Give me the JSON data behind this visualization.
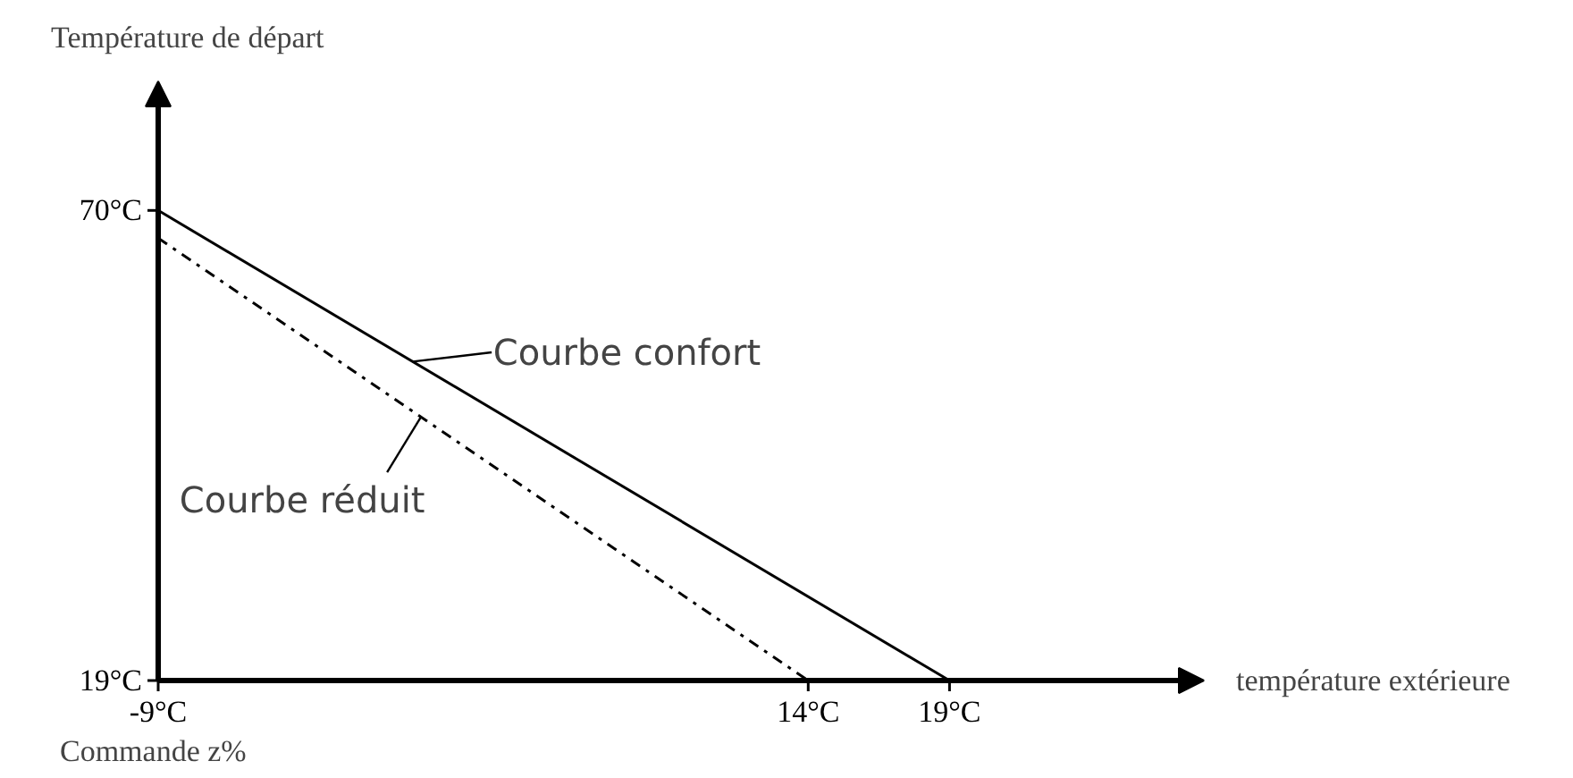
{
  "chart_data": {
    "type": "line",
    "xlabel": "température extérieure",
    "ylabel": "Température de départ",
    "xlim": [
      -9,
      28
    ],
    "ylim": [
      19,
      84
    ],
    "xticks": [
      {
        "value": -9,
        "label": "-9°C"
      },
      {
        "value": 14,
        "label": "14°C"
      },
      {
        "value": 19,
        "label": "19°C"
      }
    ],
    "yticks": [
      {
        "value": 19,
        "label": "19°C"
      },
      {
        "value": 70,
        "label": "70°C"
      }
    ],
    "series": [
      {
        "color": "#000000",
        "x": [
          -9,
          19
        ],
        "values": [
          70,
          19
        ],
        "line_style": "solid"
      },
      {
        "color": "#000000",
        "x": [
          -9,
          14
        ],
        "values": [
          67,
          19
        ],
        "line_style": "dashdot"
      }
    ],
    "annotations": [
      {
        "text": "Courbe confort",
        "x": 0,
        "y": 53.6
      },
      {
        "text": "Courbe réduit",
        "x": 0.3,
        "y": 47.6
      },
      "Commande z%"
    ],
    "grid": false,
    "marker": "none"
  }
}
